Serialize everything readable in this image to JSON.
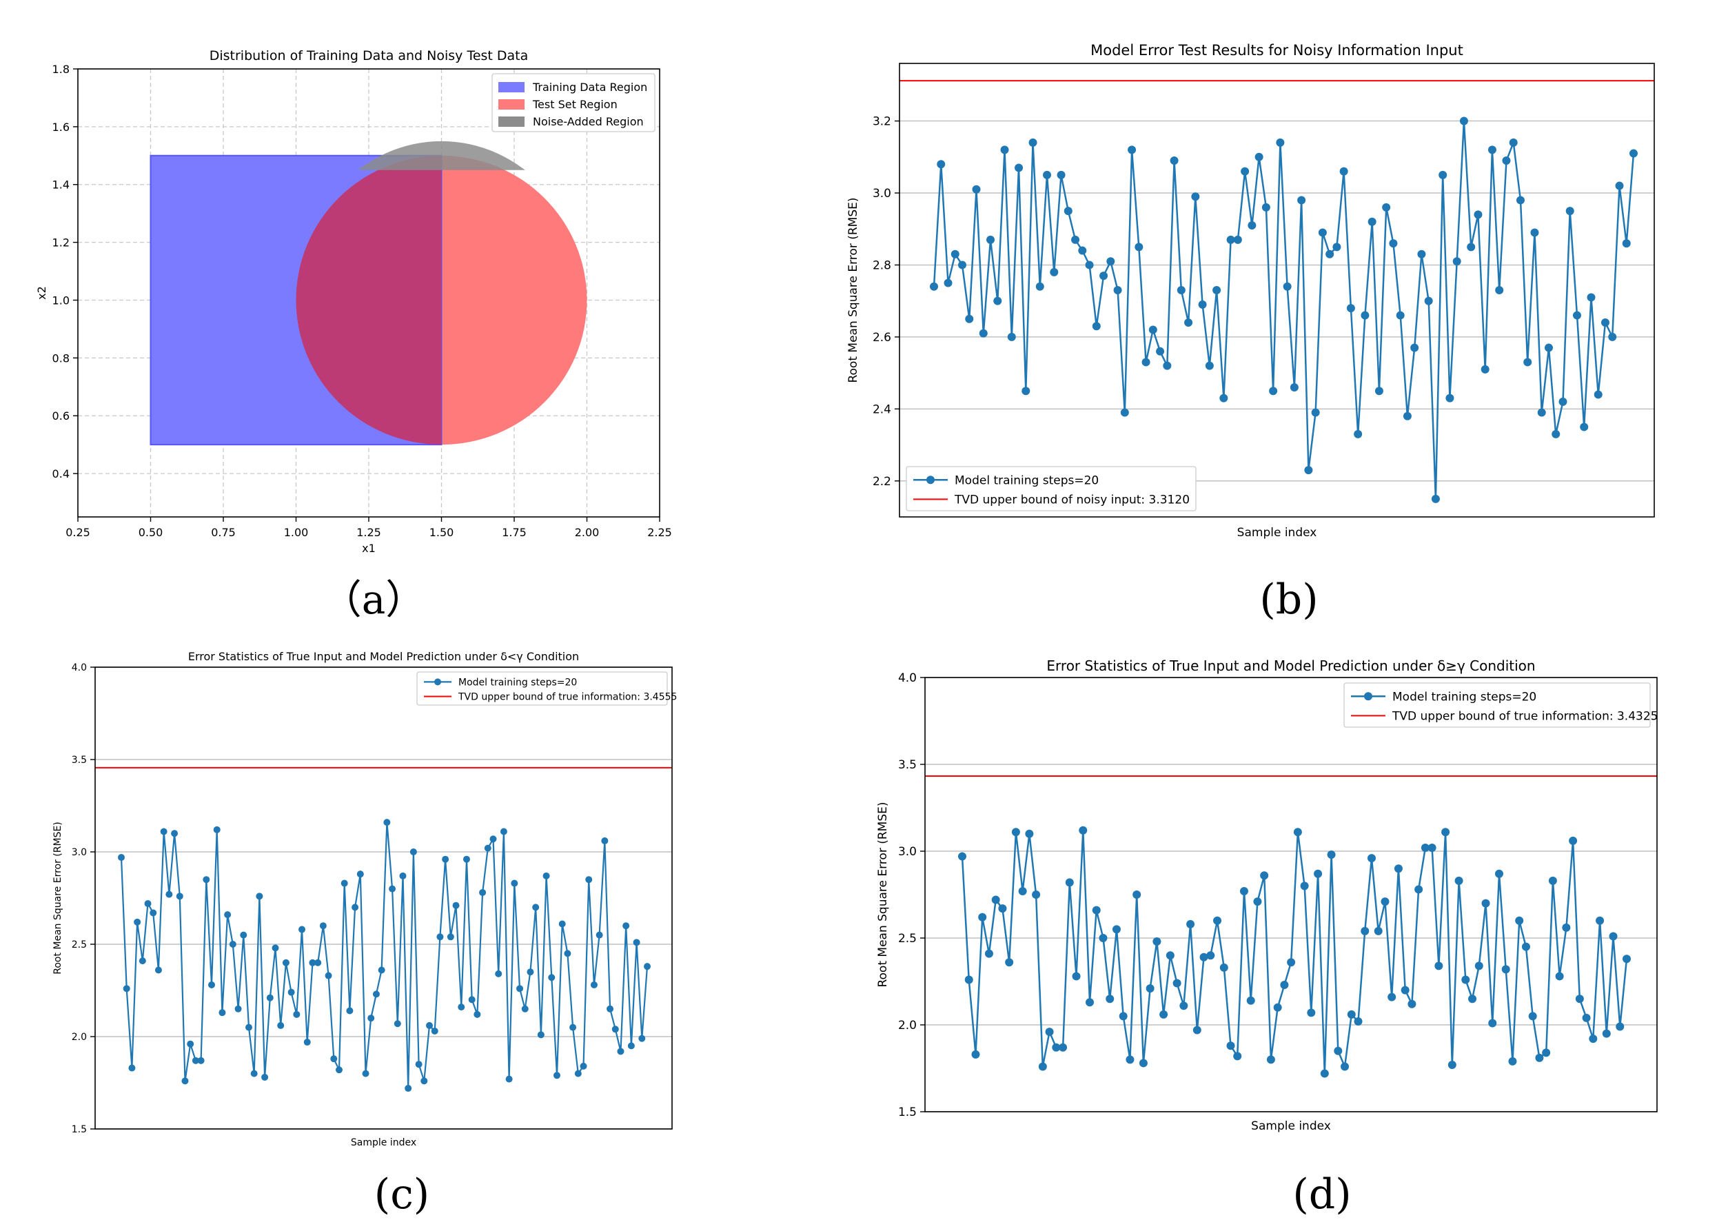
{
  "chart_data": [
    {
      "panel": "a",
      "type": "area",
      "title": "Distribution of Training Data and Noisy Test Data",
      "xlabel": "x1",
      "ylabel": "x2",
      "xlim": [
        0.25,
        2.25
      ],
      "ylim": [
        0.25,
        1.8
      ],
      "xticks": [
        "0.25",
        "0.50",
        "0.75",
        "1.00",
        "1.25",
        "1.50",
        "1.75",
        "2.00",
        "2.25"
      ],
      "yticks": [
        "0.4",
        "0.6",
        "0.8",
        "1.0",
        "1.2",
        "1.4",
        "1.6",
        "1.8"
      ],
      "grid": true,
      "legend": {
        "position": "top-right",
        "entries": [
          {
            "label": "Training Data Region",
            "color": "#7b7bff"
          },
          {
            "label": "Test Set Region",
            "color": "#ff7b7b"
          },
          {
            "label": "Noise-Added Region",
            "color": "#8c8c8c"
          }
        ]
      },
      "regions": {
        "training_rect": {
          "x0": 0.5,
          "x1": 1.5,
          "y0": 0.5,
          "y1": 1.5
        },
        "test_circle": {
          "cx": 1.5,
          "cy": 1.0,
          "r": 0.5
        },
        "noise_cap": {
          "cx": 1.5,
          "cy": 1.0,
          "r": 0.5,
          "y_min": 1.45,
          "y_max": 1.55
        }
      },
      "caption": "（a）"
    },
    {
      "panel": "b",
      "type": "line",
      "title": "Model Error Test Results for Noisy Information Input",
      "xlabel": "Sample index",
      "ylabel": "Root Mean Square Error (RMSE)",
      "ylim": [
        2.1,
        3.36
      ],
      "yticks": [
        "2.2",
        "2.4",
        "2.6",
        "2.8",
        "3.0",
        "3.2"
      ],
      "legend": {
        "position": "bottom-left"
      },
      "series": [
        {
          "name": "Model training steps=20",
          "values": [
            2.74,
            3.08,
            2.75,
            2.83,
            2.8,
            2.65,
            3.01,
            2.61,
            2.87,
            2.7,
            3.12,
            2.6,
            3.07,
            2.45,
            3.14,
            2.74,
            3.05,
            2.78,
            3.05,
            2.95,
            2.87,
            2.84,
            2.8,
            2.63,
            2.77,
            2.81,
            2.73,
            2.39,
            3.12,
            2.85,
            2.53,
            2.62,
            2.56,
            2.52,
            3.09,
            2.73,
            2.64,
            2.99,
            2.69,
            2.52,
            2.73,
            2.43,
            2.87,
            2.87,
            3.06,
            2.91,
            3.1,
            2.96,
            2.45,
            3.14,
            2.74,
            2.46,
            2.98,
            2.23,
            2.39,
            2.89,
            2.83,
            2.85,
            3.06,
            2.68,
            2.33,
            2.66,
            2.92,
            2.45,
            2.96,
            2.86,
            2.66,
            2.38,
            2.57,
            2.83,
            2.7,
            2.15,
            3.05,
            2.43,
            2.81,
            3.2,
            2.85,
            2.94,
            2.51,
            3.12,
            2.73,
            3.09,
            3.14,
            2.98,
            2.53,
            2.89,
            2.39,
            2.57,
            2.33,
            2.42,
            2.95,
            2.66,
            2.35,
            2.71,
            2.44,
            2.64,
            2.6,
            3.02,
            2.86,
            3.11
          ]
        }
      ],
      "reference_line": {
        "name": "TVD upper bound of noisy input: 3.3120",
        "value": 3.312
      },
      "caption": "(b)"
    },
    {
      "panel": "c",
      "type": "line",
      "title": "Error Statistics of True Input and Model Prediction under δ<γ Condition",
      "xlabel": "Sample index",
      "ylabel": "Root Mean Square Error (RMSE)",
      "ylim": [
        1.5,
        4.0
      ],
      "yticks": [
        "1.5",
        "2.0",
        "2.5",
        "3.0",
        "3.5",
        "4.0"
      ],
      "legend": {
        "position": "top-right"
      },
      "series": [
        {
          "name": "Model training steps=20",
          "values": [
            2.97,
            2.26,
            1.83,
            2.62,
            2.41,
            2.72,
            2.67,
            2.36,
            3.11,
            2.77,
            3.1,
            2.76,
            1.76,
            1.96,
            1.87,
            1.87,
            2.85,
            2.28,
            3.12,
            2.13,
            2.66,
            2.5,
            2.15,
            2.55,
            2.05,
            1.8,
            2.76,
            1.78,
            2.21,
            2.48,
            2.06,
            2.4,
            2.24,
            2.12,
            2.58,
            1.97,
            2.4,
            2.4,
            2.6,
            2.33,
            1.88,
            1.82,
            2.83,
            2.14,
            2.7,
            2.88,
            1.8,
            2.1,
            2.23,
            2.36,
            3.16,
            2.8,
            2.07,
            2.87,
            1.72,
            3.0,
            1.85,
            1.76,
            2.06,
            2.03,
            2.54,
            2.96,
            2.54,
            2.71,
            2.16,
            2.96,
            2.2,
            2.12,
            2.78,
            3.02,
            3.07,
            2.34,
            3.11,
            1.77,
            2.83,
            2.26,
            2.15,
            2.35,
            2.7,
            2.01,
            2.87,
            2.32,
            1.79,
            2.61,
            2.45,
            2.05,
            1.8,
            1.84,
            2.85,
            2.28,
            2.55,
            3.06,
            2.15,
            2.04,
            1.92,
            2.6,
            1.95,
            2.51,
            1.99,
            2.38
          ]
        }
      ],
      "reference_line": {
        "name": "TVD upper bound of true information: 3.4555",
        "value": 3.4555
      },
      "caption": "(c)"
    },
    {
      "panel": "d",
      "type": "line",
      "title": "Error Statistics of True Input and Model Prediction under δ≥γ Condition",
      "xlabel": "Sample index",
      "ylabel": "Root Mean Square Error (RMSE)",
      "ylim": [
        1.5,
        4.0
      ],
      "yticks": [
        "1.5",
        "2.0",
        "2.5",
        "3.0",
        "3.5",
        "4.0"
      ],
      "legend": {
        "position": "top-right"
      },
      "series": [
        {
          "name": "Model training steps=20",
          "values": [
            2.97,
            2.26,
            1.83,
            2.62,
            2.41,
            2.72,
            2.67,
            2.36,
            3.11,
            2.77,
            3.1,
            2.75,
            1.76,
            1.96,
            1.87,
            1.87,
            2.82,
            2.28,
            3.12,
            2.13,
            2.66,
            2.5,
            2.15,
            2.55,
            2.05,
            1.8,
            2.75,
            1.78,
            2.21,
            2.48,
            2.06,
            2.4,
            2.24,
            2.11,
            2.58,
            1.97,
            2.39,
            2.4,
            2.6,
            2.33,
            1.88,
            1.82,
            2.77,
            2.14,
            2.71,
            2.86,
            1.8,
            2.1,
            2.23,
            2.36,
            3.11,
            2.8,
            2.07,
            2.87,
            1.72,
            2.98,
            1.85,
            1.76,
            2.06,
            2.02,
            2.54,
            2.96,
            2.54,
            2.71,
            2.16,
            2.9,
            2.2,
            2.12,
            2.78,
            3.02,
            3.02,
            2.34,
            3.11,
            1.77,
            2.83,
            2.26,
            2.15,
            2.34,
            2.7,
            2.01,
            2.87,
            2.32,
            1.79,
            2.6,
            2.45,
            2.05,
            1.81,
            1.84,
            2.83,
            2.28,
            2.56,
            3.06,
            2.15,
            2.04,
            1.92,
            2.6,
            1.95,
            2.51,
            1.99,
            2.38
          ]
        }
      ],
      "reference_line": {
        "name": "TVD upper bound of true information: 3.4325",
        "value": 3.4325
      },
      "caption": "(d)"
    }
  ],
  "colors": {
    "series": "#1f77b4",
    "reference": "#ff0000",
    "training_region": "#7b7bff",
    "test_region": "#ff7b7b",
    "overlap_region": "#bd3b74",
    "noise_region": "#8c8c8c",
    "caption_text": "#8a6a6a"
  }
}
